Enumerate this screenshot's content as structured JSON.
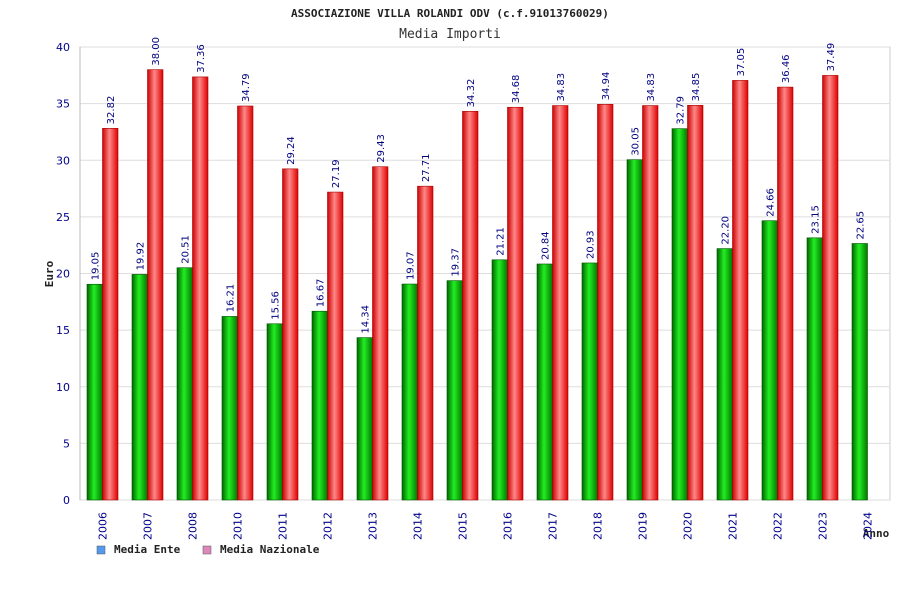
{
  "chart_data": {
    "type": "bar",
    "title": "ASSOCIAZIONE VILLA ROLANDI ODV (c.f.91013760029)",
    "subtitle": "Media Importi",
    "xlabel": "Anno",
    "ylabel": "Euro",
    "ylim": [
      0,
      40
    ],
    "yticks": [
      0,
      5,
      10,
      15,
      20,
      25,
      30,
      35,
      40
    ],
    "grid": true,
    "legend_position": "bottom-left",
    "categories": [
      "2006",
      "2007",
      "2008",
      "2010",
      "2011",
      "2012",
      "2013",
      "2014",
      "2015",
      "2016",
      "2017",
      "2018",
      "2019",
      "2020",
      "2021",
      "2022",
      "2023",
      "2024"
    ],
    "series": [
      {
        "name": "Media Ente",
        "color": "#00aa00",
        "legend_color": "#5599ee",
        "values": [
          19.05,
          19.92,
          20.51,
          16.21,
          15.56,
          16.67,
          14.34,
          19.07,
          19.37,
          21.21,
          20.84,
          20.93,
          30.05,
          32.79,
          22.2,
          24.66,
          23.15,
          22.65
        ],
        "labels": [
          "19.05",
          "19.92",
          "20.51",
          "16.21",
          "15.56",
          "16.67",
          "14.34",
          "19.07",
          "19.37",
          "21.21",
          "20.84",
          "20.93",
          "30.05",
          "32.79",
          "22.20",
          "24.66",
          "23.15",
          "22.65"
        ]
      },
      {
        "name": "Media Nazionale",
        "color": "#ee1111",
        "legend_color": "#dd88bb",
        "values": [
          32.82,
          38.0,
          37.36,
          34.79,
          29.24,
          27.19,
          29.43,
          27.71,
          34.32,
          34.68,
          34.83,
          34.94,
          34.83,
          34.85,
          37.05,
          36.46,
          37.49,
          null
        ],
        "labels": [
          "32.82",
          "38.00",
          "37.36",
          "34.79",
          "29.24",
          "27.19",
          "29.43",
          "27.71",
          "34.32",
          "34.68",
          "34.83",
          "34.94",
          "34.83",
          "34.85",
          "37.05",
          "36.46",
          "37.49",
          null
        ]
      }
    ]
  }
}
